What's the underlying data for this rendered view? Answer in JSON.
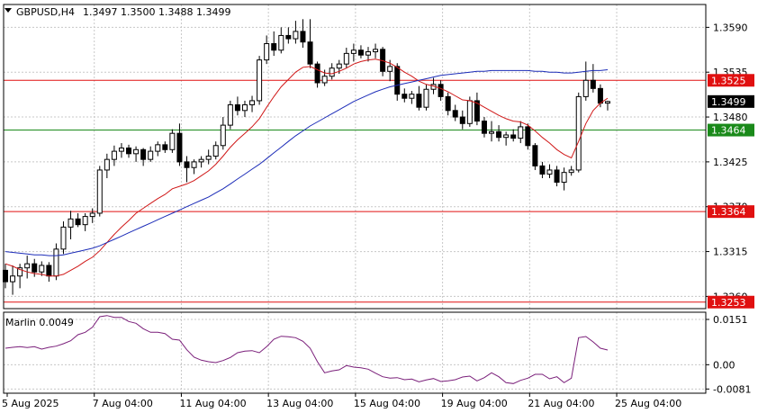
{
  "header": {
    "symbol": "GBPUSD,H4",
    "ohlc": "1.3497 1.3500 1.3488 1.3499"
  },
  "chart_data": {
    "type": "candlestick",
    "symbol": "GBPUSD",
    "timeframe": "H4",
    "price_ylim": [
      1.3245,
      1.3618
    ],
    "price_ticks": [
      "1.3590",
      "1.3535",
      "1.3480",
      "1.3425",
      "1.3370",
      "1.3315",
      "1.3260"
    ],
    "price_tick_values": [
      1.359,
      1.3535,
      1.348,
      1.3425,
      1.337,
      1.3315,
      1.326
    ],
    "current_price": {
      "value": 1.3499,
      "label": "1.3499"
    },
    "levels": [
      {
        "value": 1.3525,
        "label": "1.3525",
        "color": "#e01010"
      },
      {
        "value": 1.3464,
        "label": "1.3464",
        "color": "#1a8a1a"
      },
      {
        "value": 1.3364,
        "label": "1.3364",
        "color": "#e01010"
      },
      {
        "value": 1.3253,
        "label": "1.3253",
        "color": "#e01010"
      }
    ],
    "x_labels": [
      "5 Aug 2025",
      "7 Aug 04:00",
      "11 Aug 04:00",
      "13 Aug 04:00",
      "15 Aug 04:00",
      "19 Aug 04:00",
      "21 Aug 04:00",
      "25 Aug 04:00"
    ],
    "x_label_bars": [
      0,
      12,
      24,
      36,
      48,
      60,
      72,
      84
    ],
    "candles": [
      [
        1.3292,
        1.33,
        1.327,
        1.3278
      ],
      [
        1.3278,
        1.3298,
        1.3262,
        1.3285
      ],
      [
        1.3285,
        1.33,
        1.327,
        1.3295
      ],
      [
        1.3295,
        1.331,
        1.3282,
        1.33
      ],
      [
        1.33,
        1.3306,
        1.3284,
        1.329
      ],
      [
        1.329,
        1.3303,
        1.3285,
        1.3298
      ],
      [
        1.3298,
        1.3302,
        1.3278,
        1.3285
      ],
      [
        1.3285,
        1.3325,
        1.328,
        1.3318
      ],
      [
        1.3318,
        1.3352,
        1.3312,
        1.3345
      ],
      [
        1.3345,
        1.3365,
        1.333,
        1.3355
      ],
      [
        1.3355,
        1.3362,
        1.3345,
        1.3348
      ],
      [
        1.3348,
        1.3362,
        1.334,
        1.3358
      ],
      [
        1.3358,
        1.3368,
        1.335,
        1.3362
      ],
      [
        1.3362,
        1.342,
        1.3358,
        1.3415
      ],
      [
        1.3415,
        1.3435,
        1.3405,
        1.3428
      ],
      [
        1.3428,
        1.3445,
        1.342,
        1.3438
      ],
      [
        1.3438,
        1.3448,
        1.343,
        1.3442
      ],
      [
        1.3442,
        1.3446,
        1.343,
        1.3435
      ],
      [
        1.3435,
        1.3444,
        1.3425,
        1.344
      ],
      [
        1.344,
        1.3442,
        1.342,
        1.3428
      ],
      [
        1.3428,
        1.3444,
        1.3425,
        1.3438
      ],
      [
        1.3438,
        1.345,
        1.3432,
        1.3446
      ],
      [
        1.3446,
        1.345,
        1.3436,
        1.344
      ],
      [
        1.344,
        1.3465,
        1.3436,
        1.346
      ],
      [
        1.346,
        1.3472,
        1.342,
        1.3425
      ],
      [
        1.3425,
        1.3432,
        1.34,
        1.3418
      ],
      [
        1.3418,
        1.3428,
        1.341,
        1.3425
      ],
      [
        1.3425,
        1.3432,
        1.3418,
        1.3428
      ],
      [
        1.3428,
        1.344,
        1.3422,
        1.3432
      ],
      [
        1.3432,
        1.345,
        1.3428,
        1.3445
      ],
      [
        1.3445,
        1.348,
        1.344,
        1.347
      ],
      [
        1.347,
        1.35,
        1.3465,
        1.3495
      ],
      [
        1.3495,
        1.3505,
        1.3482,
        1.3488
      ],
      [
        1.3488,
        1.35,
        1.348,
        1.3495
      ],
      [
        1.3495,
        1.3506,
        1.3486,
        1.35
      ],
      [
        1.35,
        1.3555,
        1.3495,
        1.355
      ],
      [
        1.355,
        1.358,
        1.3545,
        1.357
      ],
      [
        1.357,
        1.3585,
        1.3555,
        1.3562
      ],
      [
        1.3562,
        1.359,
        1.3558,
        1.358
      ],
      [
        1.358,
        1.359,
        1.357,
        1.3576
      ],
      [
        1.3576,
        1.3598,
        1.357,
        1.3585
      ],
      [
        1.3585,
        1.36,
        1.3565,
        1.3572
      ],
      [
        1.3572,
        1.36,
        1.354,
        1.3545
      ],
      [
        1.3545,
        1.3548,
        1.3516,
        1.3522
      ],
      [
        1.3522,
        1.3538,
        1.3518,
        1.353
      ],
      [
        1.353,
        1.3546,
        1.3526,
        1.354
      ],
      [
        1.354,
        1.355,
        1.3533,
        1.3545
      ],
      [
        1.3545,
        1.3565,
        1.354,
        1.3558
      ],
      [
        1.3558,
        1.357,
        1.3548,
        1.3562
      ],
      [
        1.3562,
        1.3568,
        1.3552,
        1.3556
      ],
      [
        1.3556,
        1.3566,
        1.3548,
        1.356
      ],
      [
        1.356,
        1.357,
        1.3552,
        1.3563
      ],
      [
        1.3563,
        1.3566,
        1.353,
        1.3536
      ],
      [
        1.3536,
        1.355,
        1.3524,
        1.3542
      ],
      [
        1.3542,
        1.3546,
        1.35,
        1.3508
      ],
      [
        1.3508,
        1.3515,
        1.3498,
        1.3503
      ],
      [
        1.3503,
        1.3512,
        1.3496,
        1.3508
      ],
      [
        1.3508,
        1.3518,
        1.3488,
        1.3492
      ],
      [
        1.3492,
        1.352,
        1.3488,
        1.3514
      ],
      [
        1.3514,
        1.3528,
        1.3508,
        1.352
      ],
      [
        1.352,
        1.3525,
        1.35,
        1.3505
      ],
      [
        1.3505,
        1.351,
        1.3482,
        1.3488
      ],
      [
        1.3488,
        1.3495,
        1.3475,
        1.348
      ],
      [
        1.348,
        1.3488,
        1.3465,
        1.3472
      ],
      [
        1.3472,
        1.3505,
        1.3468,
        1.35
      ],
      [
        1.35,
        1.351,
        1.347,
        1.3475
      ],
      [
        1.3475,
        1.348,
        1.3455,
        1.346
      ],
      [
        1.346,
        1.3475,
        1.345,
        1.3462
      ],
      [
        1.3462,
        1.347,
        1.345,
        1.3455
      ],
      [
        1.3455,
        1.3462,
        1.3445,
        1.3458
      ],
      [
        1.3458,
        1.3465,
        1.345,
        1.3454
      ],
      [
        1.3454,
        1.3475,
        1.3448,
        1.3468
      ],
      [
        1.3468,
        1.3472,
        1.344,
        1.3445
      ],
      [
        1.3445,
        1.3448,
        1.3415,
        1.342
      ],
      [
        1.342,
        1.3425,
        1.3405,
        1.341
      ],
      [
        1.341,
        1.3422,
        1.3405,
        1.3415
      ],
      [
        1.3415,
        1.342,
        1.3395,
        1.34
      ],
      [
        1.34,
        1.3418,
        1.339,
        1.3412
      ],
      [
        1.3412,
        1.342,
        1.3408,
        1.3415
      ],
      [
        1.3415,
        1.351,
        1.3412,
        1.3505
      ],
      [
        1.3505,
        1.3548,
        1.35,
        1.3525
      ],
      [
        1.3525,
        1.3545,
        1.351,
        1.3515
      ],
      [
        1.3515,
        1.352,
        1.3492,
        1.3497
      ],
      [
        1.3497,
        1.35,
        1.3488,
        1.3499
      ]
    ],
    "series": [
      {
        "name": "",
        "color": "#d01818",
        "values": [
          1.33,
          1.3297,
          1.3293,
          1.329,
          1.3288,
          1.3287,
          1.3285,
          1.3285,
          1.3287,
          1.3292,
          1.3297,
          1.3303,
          1.3308,
          1.3316,
          1.3326,
          1.3336,
          1.3345,
          1.3353,
          1.3362,
          1.3368,
          1.3374,
          1.338,
          1.3385,
          1.3392,
          1.3395,
          1.3398,
          1.3402,
          1.3408,
          1.3414,
          1.3422,
          1.3432,
          1.3443,
          1.3452,
          1.346,
          1.3468,
          1.3478,
          1.3492,
          1.3505,
          1.3517,
          1.3526,
          1.3535,
          1.3541,
          1.3542,
          1.3538,
          1.3534,
          1.3533,
          1.3536,
          1.354,
          1.3545,
          1.3548,
          1.355,
          1.3551,
          1.3549,
          1.3546,
          1.3541,
          1.3535,
          1.353,
          1.3524,
          1.352,
          1.3518,
          1.3515,
          1.3511,
          1.3506,
          1.3501,
          1.35,
          1.3497,
          1.3492,
          1.3487,
          1.3482,
          1.3478,
          1.3475,
          1.3474,
          1.347,
          1.3463,
          1.3455,
          1.3448,
          1.344,
          1.3434,
          1.343,
          1.345,
          1.3472,
          1.3488,
          1.3497,
          1.3503
        ]
      },
      {
        "name": "",
        "color": "#1c2cb8",
        "values": [
          1.3315,
          1.3314,
          1.3313,
          1.3312,
          1.3311,
          1.3311,
          1.331,
          1.331,
          1.3311,
          1.3313,
          1.3315,
          1.3317,
          1.3319,
          1.3322,
          1.3326,
          1.333,
          1.3334,
          1.3338,
          1.3342,
          1.3346,
          1.335,
          1.3354,
          1.3358,
          1.3362,
          1.3366,
          1.337,
          1.3374,
          1.3378,
          1.3382,
          1.3387,
          1.3392,
          1.3398,
          1.3404,
          1.341,
          1.3416,
          1.3422,
          1.3429,
          1.3436,
          1.3443,
          1.345,
          1.3457,
          1.3463,
          1.3469,
          1.3474,
          1.3479,
          1.3484,
          1.3489,
          1.3494,
          1.3499,
          1.3503,
          1.3507,
          1.3511,
          1.3514,
          1.3517,
          1.3519,
          1.3521,
          1.3523,
          1.3525,
          1.3527,
          1.3529,
          1.3531,
          1.3532,
          1.3533,
          1.3534,
          1.3535,
          1.3536,
          1.3536,
          1.3537,
          1.3537,
          1.3537,
          1.3537,
          1.3537,
          1.3537,
          1.3536,
          1.3536,
          1.3535,
          1.3535,
          1.3534,
          1.3534,
          1.3535,
          1.3536,
          1.3537,
          1.3537,
          1.3538
        ]
      }
    ],
    "oscillator": {
      "label": "Marlin 0.0049",
      "color": "#7a1f7a",
      "ylim": [
        -0.0095,
        0.0175
      ],
      "ticks": [
        "0.0151",
        "0.00",
        "-0.0081"
      ],
      "tick_values": [
        0.0151,
        0.0,
        -0.0081
      ],
      "values": [
        0.0055,
        0.0058,
        0.006,
        0.0057,
        0.006,
        0.0052,
        0.0058,
        0.0062,
        0.007,
        0.008,
        0.01,
        0.0108,
        0.0125,
        0.016,
        0.0164,
        0.0158,
        0.0158,
        0.0144,
        0.0138,
        0.012,
        0.0108,
        0.0108,
        0.0104,
        0.0085,
        0.0082,
        0.005,
        0.0025,
        0.0015,
        0.001,
        0.0007,
        0.0014,
        0.0024,
        0.004,
        0.0045,
        0.0047,
        0.004,
        0.006,
        0.0085,
        0.0095,
        0.0093,
        0.009,
        0.0078,
        0.0055,
        0.001,
        -0.0027,
        -0.0021,
        -0.0017,
        -0.0003,
        -0.0008,
        -0.001,
        -0.0015,
        -0.0028,
        -0.004,
        -0.0045,
        -0.0043,
        -0.005,
        -0.0048,
        -0.0057,
        -0.0051,
        -0.0046,
        -0.0056,
        -0.0054,
        -0.005,
        -0.0041,
        -0.0038,
        -0.0054,
        -0.0043,
        -0.0027,
        -0.004,
        -0.006,
        -0.0063,
        -0.0052,
        -0.0045,
        -0.0032,
        -0.0032,
        -0.0047,
        -0.004,
        -0.006,
        -0.0045,
        0.009,
        0.0094,
        0.0076,
        0.0055,
        0.0049
      ]
    }
  }
}
